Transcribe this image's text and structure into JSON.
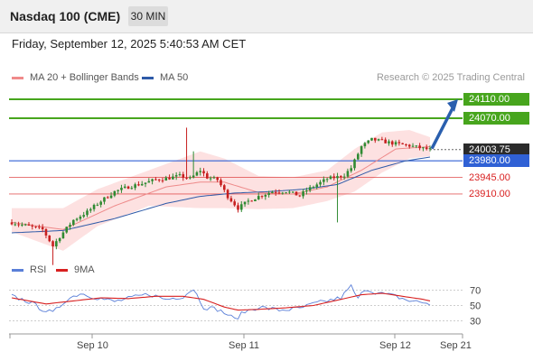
{
  "header": {
    "title": "Nasdaq 100 (CME)",
    "interval": "30 MIN"
  },
  "datetime": "Friday, September 12, 2025 5:40:53 AM CET",
  "legend": {
    "items": [
      {
        "label": "MA 20 + Bollinger Bands",
        "color": "#f08a8a"
      },
      {
        "label": "MA 50",
        "color": "#2e5aa8"
      }
    ],
    "credit": "Research © 2025 Trading Central"
  },
  "colors": {
    "up": "#2f8a32",
    "down": "#c72020",
    "target": "#47a51d",
    "resistance_text": "#47a51d",
    "support": "#d92020",
    "pivot": "#3061d5",
    "band": "#fde1e1",
    "ma20": "#ee8a8a",
    "ma50": "#2e5aa8",
    "rsi": "#5a7fd8",
    "rsi_ma": "#d82020",
    "arrow": "#2a5fae",
    "last": "#2b2b2b"
  },
  "chart_data": [
    {
      "type": "candlestick",
      "title": "Nasdaq 100 (CME)",
      "interval": "30 MIN",
      "ylim": [
        23767,
        24148
      ],
      "xticks": [
        "Sep 10",
        "Sep 11",
        "Sep 12",
        "Sep 21"
      ],
      "levels": {
        "targets": [
          {
            "label": "24110.00",
            "value": 24110.0
          },
          {
            "label": "24070.00",
            "value": 24070.0
          }
        ],
        "last_price": {
          "label": "24003.75",
          "value": 24003.75
        },
        "pivot": {
          "label": "23980.00",
          "value": 23980.0
        },
        "supports": [
          {
            "label": "23945.00",
            "value": 23945.0
          },
          {
            "label": "23910.00",
            "value": 23910.0
          }
        ]
      },
      "anchors": [
        [
          0,
          23850
        ],
        [
          6,
          23840
        ],
        [
          9,
          23835
        ],
        [
          12,
          23800
        ],
        [
          14,
          23820
        ],
        [
          18,
          23855
        ],
        [
          22,
          23872
        ],
        [
          26,
          23895
        ],
        [
          30,
          23915
        ],
        [
          34,
          23925
        ],
        [
          38,
          23932
        ],
        [
          42,
          23940
        ],
        [
          46,
          23944
        ],
        [
          49,
          23948
        ],
        [
          52,
          23942
        ],
        [
          55,
          23960
        ],
        [
          57,
          23945
        ],
        [
          60,
          23940
        ],
        [
          63,
          23905
        ],
        [
          66,
          23880
        ],
        [
          69,
          23895
        ],
        [
          72,
          23905
        ],
        [
          76,
          23915
        ],
        [
          80,
          23916
        ],
        [
          84,
          23906
        ],
        [
          86,
          23918
        ],
        [
          89,
          23930
        ],
        [
          92,
          23942
        ],
        [
          95,
          23946
        ],
        [
          97,
          23950
        ],
        [
          99,
          23965
        ],
        [
          102,
          24010
        ],
        [
          105,
          24025
        ],
        [
          109,
          24020
        ],
        [
          112,
          24016
        ],
        [
          116,
          24012
        ],
        [
          120,
          24006
        ],
        [
          122,
          24003.75
        ]
      ],
      "ma20": [
        [
          0,
          23850
        ],
        [
          15,
          23835
        ],
        [
          30,
          23885
        ],
        [
          45,
          23925
        ],
        [
          55,
          23935
        ],
        [
          62,
          23935
        ],
        [
          72,
          23913
        ],
        [
          82,
          23910
        ],
        [
          92,
          23925
        ],
        [
          102,
          23960
        ],
        [
          112,
          24005
        ],
        [
          122,
          24010
        ]
      ],
      "ma50": [
        [
          0,
          23828
        ],
        [
          15,
          23833
        ],
        [
          30,
          23858
        ],
        [
          45,
          23890
        ],
        [
          55,
          23905
        ],
        [
          65,
          23912
        ],
        [
          75,
          23915
        ],
        [
          85,
          23920
        ],
        [
          95,
          23930
        ],
        [
          105,
          23960
        ],
        [
          115,
          23980
        ],
        [
          122,
          23988
        ]
      ],
      "band_upper": [
        [
          0,
          23880
        ],
        [
          15,
          23880
        ],
        [
          25,
          23920
        ],
        [
          40,
          23960
        ],
        [
          55,
          24000
        ],
        [
          62,
          23985
        ],
        [
          72,
          23948
        ],
        [
          82,
          23945
        ],
        [
          92,
          23960
        ],
        [
          100,
          24005
        ],
        [
          108,
          24040
        ],
        [
          116,
          24045
        ],
        [
          122,
          24030
        ]
      ],
      "band_lower": [
        [
          0,
          23830
        ],
        [
          15,
          23790
        ],
        [
          25,
          23842
        ],
        [
          40,
          23885
        ],
        [
          55,
          23880
        ],
        [
          62,
          23880
        ],
        [
          72,
          23878
        ],
        [
          82,
          23880
        ],
        [
          92,
          23895
        ],
        [
          100,
          23915
        ],
        [
          108,
          23955
        ],
        [
          116,
          23985
        ],
        [
          122,
          23990
        ]
      ],
      "spikes": [
        [
          51,
          24050
        ],
        [
          53,
          24000
        ],
        [
          95,
          23850
        ],
        [
          12,
          23760
        ]
      ]
    },
    {
      "type": "line",
      "title": "RSI",
      "ylim": [
        20,
        80
      ],
      "yticks": [
        70,
        50,
        30
      ],
      "series": [
        {
          "name": "RSI",
          "anchors": [
            [
              0,
              62
            ],
            [
              5,
              55
            ],
            [
              9,
              45
            ],
            [
              12,
              40
            ],
            [
              16,
              58
            ],
            [
              20,
              66
            ],
            [
              25,
              60
            ],
            [
              30,
              55
            ],
            [
              35,
              60
            ],
            [
              40,
              65
            ],
            [
              45,
              58
            ],
            [
              50,
              62
            ],
            [
              53,
              72
            ],
            [
              56,
              48
            ],
            [
              60,
              45
            ],
            [
              63,
              38
            ],
            [
              65,
              32
            ],
            [
              68,
              42
            ],
            [
              72,
              48
            ],
            [
              78,
              44
            ],
            [
              84,
              46
            ],
            [
              88,
              52
            ],
            [
              92,
              56
            ],
            [
              96,
              60
            ],
            [
              99,
              75
            ],
            [
              101,
              58
            ],
            [
              103,
              72
            ],
            [
              107,
              66
            ],
            [
              112,
              62
            ],
            [
              116,
              56
            ],
            [
              120,
              54
            ],
            [
              122,
              52
            ]
          ]
        },
        {
          "name": "9MA",
          "anchors": [
            [
              0,
              60
            ],
            [
              10,
              52
            ],
            [
              18,
              56
            ],
            [
              26,
              60
            ],
            [
              34,
              59
            ],
            [
              42,
              62
            ],
            [
              50,
              62
            ],
            [
              56,
              58
            ],
            [
              62,
              48
            ],
            [
              66,
              44
            ],
            [
              72,
              45
            ],
            [
              80,
              47
            ],
            [
              88,
              50
            ],
            [
              96,
              58
            ],
            [
              102,
              64
            ],
            [
              108,
              66
            ],
            [
              114,
              62
            ],
            [
              120,
              58
            ],
            [
              122,
              56
            ]
          ]
        }
      ]
    }
  ]
}
